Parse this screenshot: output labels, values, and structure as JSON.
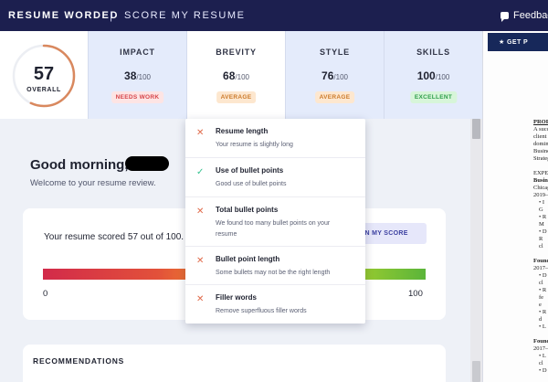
{
  "header": {
    "brand": "RESUME WORDED",
    "separator": "|",
    "subtitle": "SCORE MY RESUME",
    "feedback_label": "Feedbac"
  },
  "overall": {
    "value": "57",
    "label": "OVERALL",
    "fraction": 0.57,
    "accent": "#d9885e"
  },
  "categories": [
    {
      "name": "IMPACT",
      "score": "38",
      "denominator": "/100",
      "badge": "NEEDS WORK",
      "badge_bg": "#fde4e4",
      "badge_fg": "#d6454a"
    },
    {
      "name": "BREVITY",
      "score": "68",
      "denominator": "/100",
      "badge": "AVERAGE",
      "badge_bg": "#fde7cf",
      "badge_fg": "#cc7a2a"
    },
    {
      "name": "STYLE",
      "score": "76",
      "denominator": "/100",
      "badge": "AVERAGE",
      "badge_bg": "#fde7cf",
      "badge_fg": "#cc7a2a"
    },
    {
      "name": "SKILLS",
      "score": "100",
      "denominator": "/100",
      "badge": "EXCELLENT",
      "badge_bg": "#d7f5d9",
      "badge_fg": "#2e9e4a"
    }
  ],
  "main": {
    "greeting": "Good morning,",
    "welcome": "Welcome to your resume review.",
    "score_text": "Your resume scored 57 out of 100.",
    "explain_button": "LAIN MY SCORE",
    "bar_min": "0",
    "bar_max": "100",
    "recommendations_title": "RECOMMENDATIONS"
  },
  "dropdown": {
    "items": [
      {
        "status": "fail",
        "title": "Resume length",
        "description": "Your resume is slightly long"
      },
      {
        "status": "pass",
        "title": "Use of bullet points",
        "description": "Good use of bullet points"
      },
      {
        "status": "fail",
        "title": "Total bullet points",
        "description": "We found too many bullet points on your resume"
      },
      {
        "status": "fail",
        "title": "Bullet point length",
        "description": "Some bullets may not be the right length"
      },
      {
        "status": "fail",
        "title": "Filler words",
        "description": "Remove superfluous filler words"
      }
    ]
  },
  "right_panel": {
    "get_button": "GET P",
    "doc_lines": [
      {
        "text": "PROF",
        "style": "b u"
      },
      {
        "text": "A succ",
        "style": ""
      },
      {
        "text": "client",
        "style": ""
      },
      {
        "text": "domin",
        "style": ""
      },
      {
        "text": "Busine",
        "style": ""
      },
      {
        "text": "Strateg",
        "style": ""
      },
      {
        "text": "",
        "style": ""
      },
      {
        "text": "EXPE",
        "style": ""
      },
      {
        "text": "Busin",
        "style": "b"
      },
      {
        "text": "Chicag",
        "style": ""
      },
      {
        "text": "2019–",
        "style": ""
      },
      {
        "text": "• I",
        "style": "ind"
      },
      {
        "text": "  G",
        "style": "ind"
      },
      {
        "text": "• R",
        "style": "ind"
      },
      {
        "text": "  M",
        "style": "ind"
      },
      {
        "text": "• D",
        "style": "ind"
      },
      {
        "text": "  R",
        "style": "ind"
      },
      {
        "text": "  cl",
        "style": "ind"
      },
      {
        "text": "",
        "style": ""
      },
      {
        "text": "Found",
        "style": "b"
      },
      {
        "text": "2017–",
        "style": ""
      },
      {
        "text": "• D",
        "style": "ind"
      },
      {
        "text": "  cl",
        "style": "ind"
      },
      {
        "text": "• R",
        "style": "ind"
      },
      {
        "text": "  fe",
        "style": "ind"
      },
      {
        "text": "  e",
        "style": "ind"
      },
      {
        "text": "• R",
        "style": "ind"
      },
      {
        "text": "  d",
        "style": "ind"
      },
      {
        "text": "• L",
        "style": "ind"
      },
      {
        "text": "",
        "style": ""
      },
      {
        "text": "Found",
        "style": "b"
      },
      {
        "text": "2017–",
        "style": ""
      },
      {
        "text": "• L",
        "style": "ind"
      },
      {
        "text": "  cl",
        "style": "ind"
      },
      {
        "text": "• D",
        "style": "ind"
      }
    ]
  }
}
